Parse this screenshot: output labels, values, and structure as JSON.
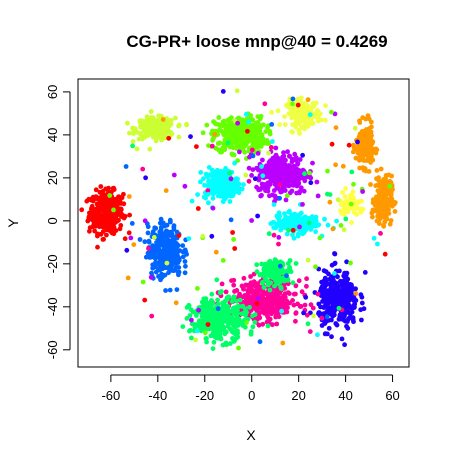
{
  "chart_data": {
    "type": "scatter",
    "title": "CG-PR+ loose mnp@40 = 0.4269",
    "xlabel": "X",
    "ylabel": "Y",
    "xlim": [
      -74,
      67
    ],
    "ylim": [
      -68,
      66
    ],
    "x_ticks": [
      -60,
      -40,
      -20,
      0,
      20,
      40,
      60
    ],
    "y_ticks": [
      -60,
      -40,
      -20,
      0,
      20,
      40,
      60
    ],
    "x_tick_labels": [
      "-60",
      "-40",
      "-20",
      "0",
      "20",
      "40",
      "60"
    ],
    "y_tick_labels": [
      "-60",
      "-40",
      "-20",
      "0",
      "20",
      "40",
      "60"
    ],
    "grid": false,
    "legend": "none",
    "marker": "filled circle",
    "clusters": [
      {
        "color": "#ff0000",
        "center": [
          -62,
          4
        ],
        "spread": [
          6,
          8
        ],
        "count": 340
      },
      {
        "color": "#ccff33",
        "center": [
          -41,
          43
        ],
        "spread": [
          7,
          4
        ],
        "count": 240
      },
      {
        "color": "#66ff00",
        "center": [
          -5,
          40
        ],
        "spread": [
          9,
          7
        ],
        "count": 380
      },
      {
        "color": "#eeff44",
        "center": [
          22,
          50
        ],
        "spread": [
          6,
          5
        ],
        "count": 180
      },
      {
        "color": "#ff9900",
        "center": [
          48,
          35
        ],
        "spread": [
          3,
          8
        ],
        "count": 200
      },
      {
        "color": "#ff9900",
        "center": [
          56,
          10
        ],
        "spread": [
          3,
          9
        ],
        "count": 220
      },
      {
        "color": "#bb00ff",
        "center": [
          13,
          22
        ],
        "spread": [
          9,
          8
        ],
        "count": 330
      },
      {
        "color": "#00ffff",
        "center": [
          -13,
          17
        ],
        "spread": [
          6,
          6
        ],
        "count": 220
      },
      {
        "color": "#00ffff",
        "center": [
          19,
          -1
        ],
        "spread": [
          8,
          4
        ],
        "count": 180
      },
      {
        "color": "#0066ff",
        "center": [
          -37,
          -14
        ],
        "spread": [
          6,
          10
        ],
        "count": 330
      },
      {
        "color": "#2200ff",
        "center": [
          37,
          -37
        ],
        "spread": [
          7,
          11
        ],
        "count": 330
      },
      {
        "color": "#ff0099",
        "center": [
          5,
          -37
        ],
        "spread": [
          13,
          8
        ],
        "count": 420
      },
      {
        "color": "#00ff66",
        "center": [
          -14,
          -46
        ],
        "spread": [
          10,
          8
        ],
        "count": 330
      },
      {
        "color": "#00ff66",
        "center": [
          10,
          -24
        ],
        "spread": [
          6,
          5
        ],
        "count": 120
      },
      {
        "color": "#ffff44",
        "center": [
          42,
          8
        ],
        "spread": [
          4,
          5
        ],
        "count": 60
      }
    ],
    "noise_colors": [
      "#ff0000",
      "#66ff00",
      "#00ffff",
      "#0066ff",
      "#bb00ff",
      "#ff0099",
      "#00ff66",
      "#ff9900",
      "#2200ff",
      "#ccff33"
    ],
    "noise_count": 160
  }
}
